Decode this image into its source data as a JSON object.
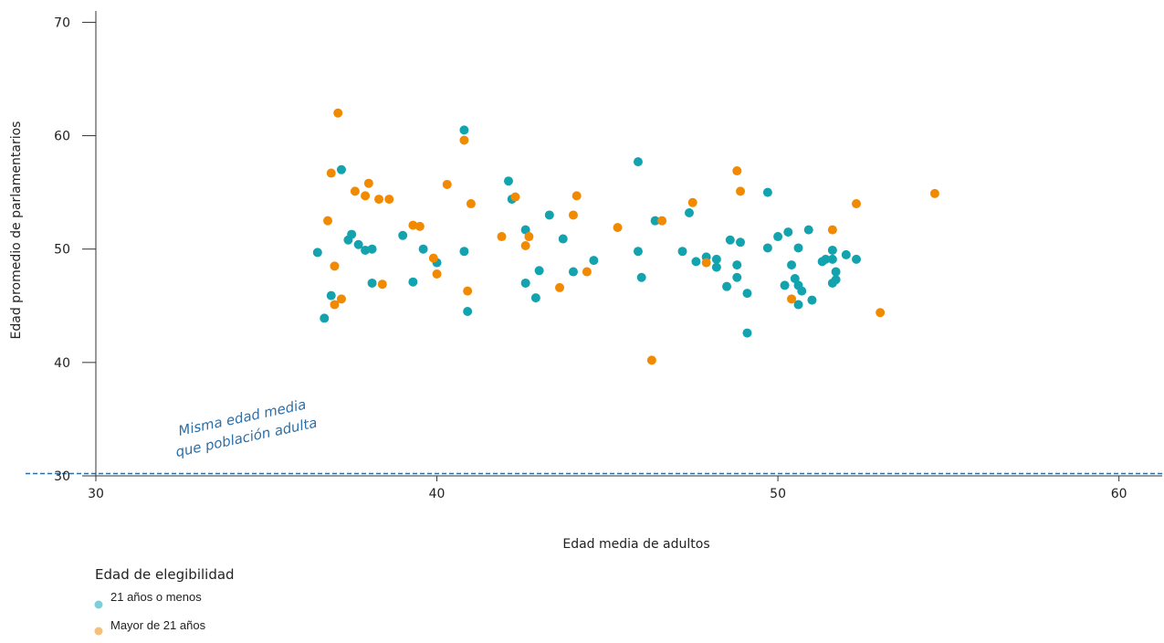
{
  "chart_data": {
    "type": "scatter",
    "title": "",
    "xlabel": "Edad media de adultos",
    "ylabel": "Edad promedio de parlamentarios",
    "xlim": [
      30,
      61
    ],
    "ylim": [
      30,
      71
    ],
    "x_ticks": [
      30,
      40,
      50,
      60
    ],
    "y_ticks": [
      30,
      40,
      50,
      60,
      70
    ],
    "grid": false,
    "reference_line": {
      "y": 30.2,
      "style": "dashed",
      "color": "#2c6fa8",
      "label_line1": "Misma edad media",
      "label_line2": "que población adulta"
    },
    "legend": {
      "title": "Edad de elegibilidad",
      "position": "bottom-left",
      "items": [
        {
          "label": "21 años o menos",
          "color": "#7fcfd8"
        },
        {
          "label": "Mayor de 21 años",
          "color": "#f5c07a"
        }
      ]
    },
    "series": [
      {
        "name": "21 años o menos",
        "color": "#12a3ae",
        "points": [
          [
            36.5,
            49.7
          ],
          [
            36.7,
            43.9
          ],
          [
            36.9,
            45.9
          ],
          [
            37.2,
            57.0
          ],
          [
            37.4,
            50.8
          ],
          [
            37.5,
            51.3
          ],
          [
            37.7,
            50.4
          ],
          [
            37.9,
            49.9
          ],
          [
            38.1,
            50.0
          ],
          [
            38.1,
            47.0
          ],
          [
            39.0,
            51.2
          ],
          [
            39.3,
            47.1
          ],
          [
            39.6,
            50.0
          ],
          [
            40.0,
            48.8
          ],
          [
            40.8,
            60.5
          ],
          [
            40.8,
            49.8
          ],
          [
            40.9,
            44.5
          ],
          [
            42.1,
            56.0
          ],
          [
            42.2,
            54.4
          ],
          [
            42.6,
            51.7
          ],
          [
            42.6,
            47.0
          ],
          [
            42.9,
            45.7
          ],
          [
            43.0,
            48.1
          ],
          [
            43.3,
            53.0
          ],
          [
            43.7,
            50.9
          ],
          [
            44.0,
            48.0
          ],
          [
            44.6,
            49.0
          ],
          [
            45.9,
            57.7
          ],
          [
            45.9,
            49.8
          ],
          [
            46.0,
            47.5
          ],
          [
            46.4,
            52.5
          ],
          [
            47.2,
            49.8
          ],
          [
            47.4,
            53.2
          ],
          [
            47.6,
            48.9
          ],
          [
            47.9,
            49.3
          ],
          [
            48.2,
            49.1
          ],
          [
            48.2,
            48.4
          ],
          [
            48.6,
            50.8
          ],
          [
            48.5,
            46.7
          ],
          [
            48.8,
            48.6
          ],
          [
            48.9,
            50.6
          ],
          [
            48.8,
            47.5
          ],
          [
            49.1,
            46.1
          ],
          [
            49.1,
            42.6
          ],
          [
            49.7,
            55.0
          ],
          [
            49.7,
            50.1
          ],
          [
            50.0,
            51.1
          ],
          [
            50.2,
            46.8
          ],
          [
            50.3,
            51.5
          ],
          [
            50.4,
            48.6
          ],
          [
            50.5,
            47.4
          ],
          [
            50.6,
            46.8
          ],
          [
            50.6,
            50.1
          ],
          [
            50.6,
            45.1
          ],
          [
            50.7,
            46.3
          ],
          [
            50.9,
            51.7
          ],
          [
            51.0,
            45.5
          ],
          [
            51.3,
            48.9
          ],
          [
            51.4,
            49.1
          ],
          [
            51.6,
            49.9
          ],
          [
            51.6,
            49.1
          ],
          [
            51.6,
            47.0
          ],
          [
            51.7,
            48.0
          ],
          [
            51.7,
            47.3
          ],
          [
            52.0,
            49.5
          ],
          [
            52.3,
            49.1
          ]
        ]
      },
      {
        "name": "Mayor de 21 años",
        "color": "#f18a00",
        "points": [
          [
            36.8,
            52.5
          ],
          [
            36.9,
            56.7
          ],
          [
            37.0,
            48.5
          ],
          [
            37.0,
            45.1
          ],
          [
            37.1,
            62.0
          ],
          [
            37.2,
            45.6
          ],
          [
            37.6,
            55.1
          ],
          [
            37.9,
            54.7
          ],
          [
            38.0,
            55.8
          ],
          [
            38.3,
            54.4
          ],
          [
            38.4,
            46.9
          ],
          [
            38.6,
            54.4
          ],
          [
            39.3,
            52.1
          ],
          [
            39.5,
            52.0
          ],
          [
            39.9,
            49.2
          ],
          [
            40.0,
            47.8
          ],
          [
            40.3,
            55.7
          ],
          [
            40.8,
            59.6
          ],
          [
            40.9,
            46.3
          ],
          [
            41.0,
            54.0
          ],
          [
            41.9,
            51.1
          ],
          [
            42.3,
            54.6
          ],
          [
            42.6,
            50.3
          ],
          [
            42.7,
            51.1
          ],
          [
            43.6,
            46.6
          ],
          [
            44.0,
            53.0
          ],
          [
            44.1,
            54.7
          ],
          [
            44.4,
            48.0
          ],
          [
            45.3,
            51.9
          ],
          [
            46.3,
            40.2
          ],
          [
            46.6,
            52.5
          ],
          [
            47.5,
            54.1
          ],
          [
            47.9,
            48.8
          ],
          [
            48.8,
            56.9
          ],
          [
            48.9,
            55.1
          ],
          [
            50.4,
            45.6
          ],
          [
            51.6,
            51.7
          ],
          [
            52.3,
            54.0
          ],
          [
            53.0,
            44.4
          ],
          [
            54.6,
            54.9
          ]
        ]
      }
    ]
  }
}
